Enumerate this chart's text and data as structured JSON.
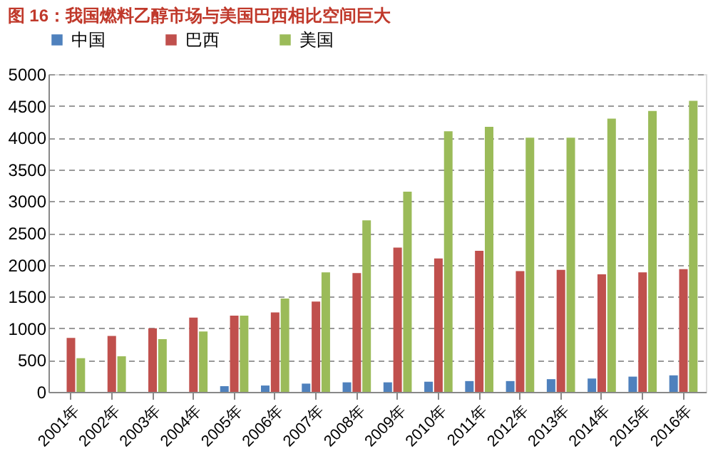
{
  "chart_data": {
    "type": "bar",
    "title": "图 16：我国燃料乙醇市场与美国巴西相比空间巨大",
    "categories": [
      "2001年",
      "2002年",
      "2003年",
      "2004年",
      "2005年",
      "2006年",
      "2007年",
      "2008年",
      "2009年",
      "2010年",
      "2011年",
      "2012年",
      "2013年",
      "2014年",
      "2015年",
      "2016年"
    ],
    "series": [
      {
        "name": "中国",
        "color": "#4f81bd",
        "values": [
          0,
          0,
          0,
          0,
          90,
          100,
          130,
          150,
          150,
          160,
          170,
          170,
          200,
          210,
          240,
          260
        ]
      },
      {
        "name": "巴西",
        "color": "#c0504d",
        "values": [
          850,
          880,
          1000,
          1170,
          1200,
          1250,
          1420,
          1870,
          2270,
          2100,
          2220,
          1900,
          1920,
          1850,
          1880,
          1930
        ]
      },
      {
        "name": "美国",
        "color": "#9bbb59",
        "values": [
          530,
          560,
          830,
          950,
          1200,
          1470,
          1880,
          2700,
          3150,
          4100,
          4170,
          4000,
          4000,
          4300,
          4420,
          4580
        ]
      }
    ],
    "ylim": [
      0,
      5000
    ],
    "yticks": [
      0,
      500,
      1000,
      1500,
      2000,
      2500,
      3000,
      3500,
      4000,
      4500,
      5000
    ],
    "grid": "y",
    "legend": "top"
  }
}
